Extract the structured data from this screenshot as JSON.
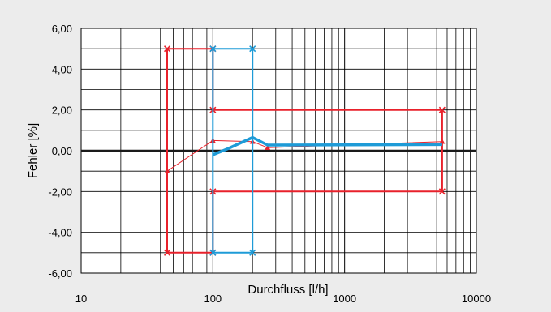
{
  "chart_data": {
    "type": "line",
    "xlabel": "Durchfluss [l/h]",
    "ylabel": "Fehler [%]",
    "xscale": "log",
    "xlim": [
      10,
      10000
    ],
    "ylim": [
      -6,
      6
    ],
    "x_ticks": [
      10,
      100,
      1000,
      10000
    ],
    "x_tick_labels": [
      "10",
      "100",
      "1000",
      "10000"
    ],
    "y_ticks": [
      -6,
      -4,
      -2,
      0,
      2,
      4,
      6
    ],
    "y_tick_labels": [
      "-6,00",
      "-4,00",
      "-2,00",
      "0,00",
      "2,00",
      "4,00",
      "6,00"
    ],
    "grid": true,
    "legend": "none",
    "colors": {
      "red": "#e8212b",
      "blue": "#1e9bd7",
      "zero_line": "#1a1a1a",
      "grid": "#000000",
      "plot_bg": "#ffffff",
      "page_bg": "#ececec"
    },
    "series": [
      {
        "style": "red-limit-envelope",
        "color": "#e8212b",
        "marker": "x",
        "points": [
          [
            45,
            5
          ],
          [
            100,
            5
          ],
          [
            100,
            2
          ],
          [
            5500,
            2
          ],
          [
            5500,
            -2
          ],
          [
            100,
            -2
          ],
          [
            100,
            -5
          ],
          [
            45,
            -5
          ],
          [
            45,
            5
          ]
        ]
      },
      {
        "style": "red-measured",
        "color": "#e8212b",
        "marker": "triangle",
        "points": [
          [
            45,
            -1
          ],
          [
            100,
            0.5
          ],
          [
            200,
            0.45
          ],
          [
            260,
            0.15
          ],
          [
            5500,
            0.45
          ]
        ]
      },
      {
        "style": "blue-limit-envelope",
        "color": "#1e9bd7",
        "marker": "x",
        "points": [
          [
            100,
            5
          ],
          [
            200,
            5
          ],
          [
            200,
            -5
          ],
          [
            100,
            -5
          ],
          [
            100,
            5
          ]
        ]
      },
      {
        "style": "blue-measured",
        "color": "#1e9bd7",
        "marker": "none",
        "points": [
          [
            100,
            -0.2
          ],
          [
            130,
            0.1
          ],
          [
            200,
            0.65
          ],
          [
            260,
            0.28
          ],
          [
            5500,
            0.3
          ]
        ]
      }
    ]
  }
}
